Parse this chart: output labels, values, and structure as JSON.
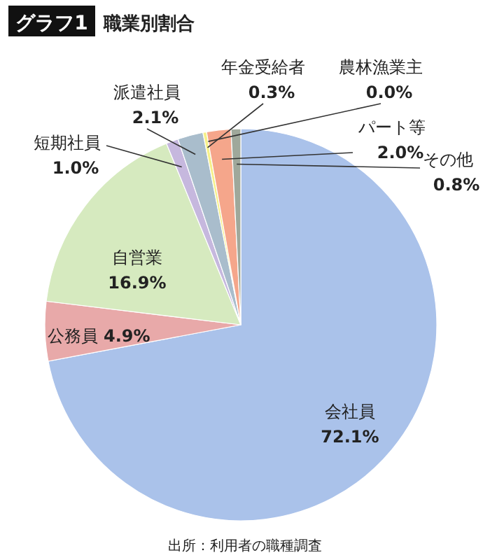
{
  "chart_data": {
    "type": "pie",
    "title": "職業別割合",
    "categories": [
      "会社員",
      "公務員",
      "自営業",
      "短期社員",
      "派遣社員",
      "年金受給者",
      "農林漁業主",
      "パート等",
      "その他"
    ],
    "values": [
      72.1,
      4.9,
      16.9,
      1.0,
      2.1,
      0.3,
      0.0,
      2.0,
      0.8
    ],
    "value_labels": [
      "72.1%",
      "4.9%",
      "16.9%",
      "1.0%",
      "2.1%",
      "0.3%",
      "0.0%",
      "2.0%",
      "0.8%"
    ],
    "colors": [
      "#aac2ea",
      "#e8a9a9",
      "#d6eabf",
      "#c6b8de",
      "#a9bdcc",
      "#f6f08a",
      null,
      "#f5a68b",
      "#9fa89b"
    ],
    "annotations": [
      "グラフ1",
      "出所：利用者の職種調査"
    ]
  }
}
